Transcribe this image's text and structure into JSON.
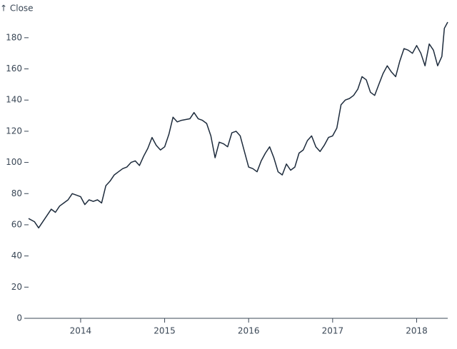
{
  "chart_data": {
    "type": "line",
    "y_label": "↑ Close",
    "color": "#1d2b3c",
    "x": [
      2013.38,
      2013.45,
      2013.5,
      2013.55,
      2013.6,
      2013.65,
      2013.7,
      2013.75,
      2013.8,
      2013.85,
      2013.9,
      2013.95,
      2014.0,
      2014.05,
      2014.1,
      2014.15,
      2014.2,
      2014.25,
      2014.3,
      2014.35,
      2014.4,
      2014.45,
      2014.5,
      2014.55,
      2014.6,
      2014.65,
      2014.7,
      2014.75,
      2014.8,
      2014.85,
      2014.9,
      2014.95,
      2015.0,
      2015.05,
      2015.1,
      2015.15,
      2015.2,
      2015.3,
      2015.35,
      2015.4,
      2015.45,
      2015.5,
      2015.55,
      2015.6,
      2015.65,
      2015.7,
      2015.75,
      2015.8,
      2015.85,
      2015.9,
      2015.95,
      2016.0,
      2016.05,
      2016.1,
      2016.15,
      2016.2,
      2016.25,
      2016.3,
      2016.35,
      2016.4,
      2016.45,
      2016.5,
      2016.55,
      2016.6,
      2016.65,
      2016.7,
      2016.75,
      2016.8,
      2016.85,
      2016.9,
      2016.95,
      2017.0,
      2017.05,
      2017.1,
      2017.15,
      2017.2,
      2017.25,
      2017.3,
      2017.35,
      2017.4,
      2017.45,
      2017.5,
      2017.55,
      2017.6,
      2017.65,
      2017.7,
      2017.75,
      2017.8,
      2017.85,
      2017.9,
      2017.95,
      2018.0,
      2018.05,
      2018.1,
      2018.15,
      2018.2,
      2018.25,
      2018.3,
      2018.33,
      2018.37
    ],
    "values": [
      64,
      62,
      58,
      62,
      66,
      70,
      68,
      72,
      74,
      76,
      80,
      79,
      78,
      73,
      76,
      75,
      76,
      74,
      85,
      88,
      92,
      94,
      96,
      97,
      100,
      101,
      98,
      104,
      109,
      116,
      111,
      108,
      110,
      118,
      129,
      126,
      127,
      128,
      132,
      128,
      127,
      125,
      117,
      103,
      113,
      112,
      110,
      119,
      120,
      117,
      107,
      97,
      96,
      94,
      101,
      106,
      110,
      103,
      94,
      92,
      99,
      95,
      97,
      106,
      108,
      114,
      117,
      110,
      107,
      111,
      116,
      117,
      122,
      137,
      140,
      141,
      143,
      147,
      155,
      153,
      145,
      143,
      150,
      157,
      162,
      158,
      155,
      165,
      173,
      172,
      170,
      175,
      170,
      162,
      176,
      172,
      162,
      168,
      186,
      190
    ],
    "xlim": [
      2013.38,
      2018.37
    ],
    "xticks": [
      2014,
      2015,
      2016,
      2017,
      2018
    ],
    "ylim": [
      0,
      190
    ],
    "yticks": [
      0,
      20,
      40,
      60,
      80,
      100,
      120,
      140,
      160,
      180
    ]
  }
}
